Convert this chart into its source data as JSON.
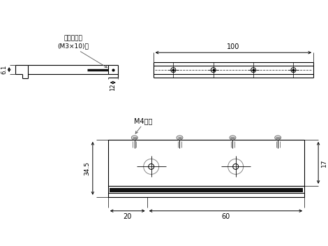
{
  "bg_color": "#ffffff",
  "line_color": "#000000",
  "annotation_nabe": "なべ小ネジ\n(M3×10)付",
  "annotation_m4": "M4サラ",
  "dim_100": "100",
  "dim_61": "6.1",
  "dim_12": "12",
  "dim_345": "34.5",
  "dim_17": "17",
  "dim_20": "20",
  "dim_60": "60"
}
